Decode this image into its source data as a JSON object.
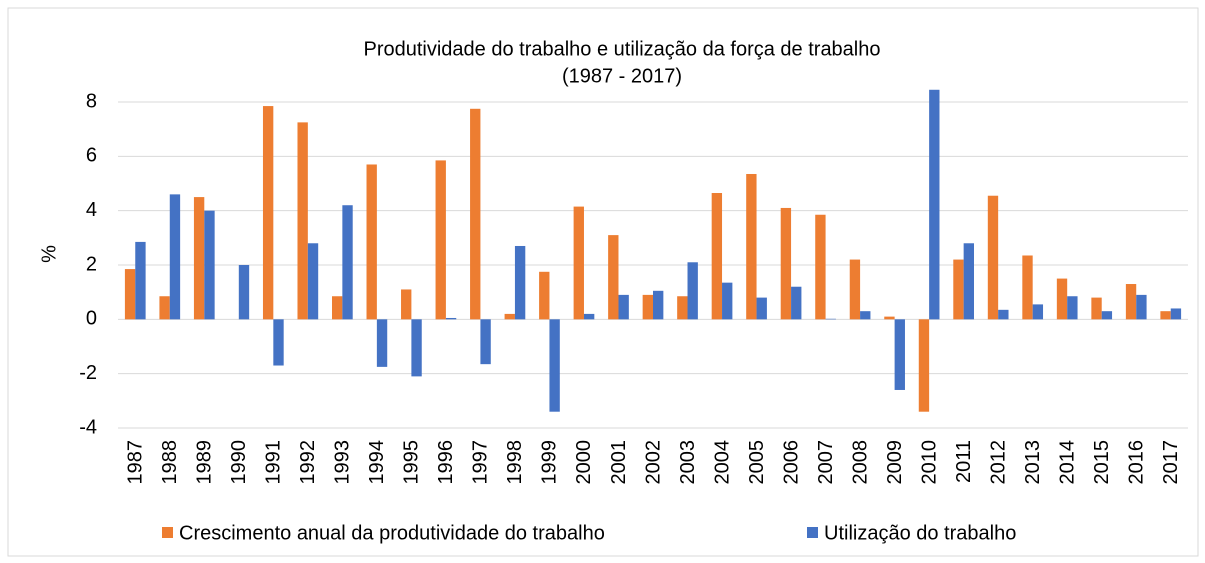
{
  "chart_data": {
    "type": "bar",
    "title": "Produtividade do trabalho e utilização da força de trabalho",
    "subtitle": "(1987 - 2017)",
    "y_label": "%",
    "categories": [
      "1987",
      "1988",
      "1989",
      "1990",
      "1991",
      "1992",
      "1993",
      "1994",
      "1995",
      "1996",
      "1997",
      "1998",
      "1999",
      "2000",
      "2001",
      "2002",
      "2003",
      "2004",
      "2005",
      "2006",
      "2007",
      "2008",
      "2009",
      "2010",
      "2011",
      "2012",
      "2013",
      "2014",
      "2015",
      "2016",
      "2017"
    ],
    "series": [
      {
        "name": "Crescimento anual da produtividade do trabalho",
        "color": "#ed7d31",
        "values": [
          1.85,
          0.85,
          4.5,
          0,
          7.85,
          7.25,
          0.85,
          5.7,
          1.1,
          5.85,
          7.75,
          0.2,
          1.75,
          4.15,
          3.1,
          0.9,
          0.85,
          4.65,
          5.35,
          4.1,
          3.85,
          2.2,
          0.1,
          -3.4,
          2.2,
          4.55,
          2.35,
          1.5,
          0.8,
          1.3,
          0.3
        ]
      },
      {
        "name": "Utilização do trabalho",
        "color": "#4472c4",
        "values": [
          2.85,
          4.6,
          4.0,
          2.0,
          -1.7,
          2.8,
          4.2,
          -1.75,
          -2.1,
          0.05,
          -1.65,
          2.7,
          -3.4,
          0.2,
          0.9,
          1.05,
          2.1,
          1.35,
          0.8,
          1.2,
          0.02,
          0.3,
          -2.6,
          8.45,
          2.8,
          0.35,
          0.55,
          0.85,
          0.3,
          0.9,
          0.4
        ]
      }
    ],
    "ylim": [
      -4,
      8.6
    ],
    "yticks": [
      -4,
      -2,
      0,
      2,
      4,
      6,
      8
    ],
    "grid": true,
    "legend": "bottom"
  }
}
